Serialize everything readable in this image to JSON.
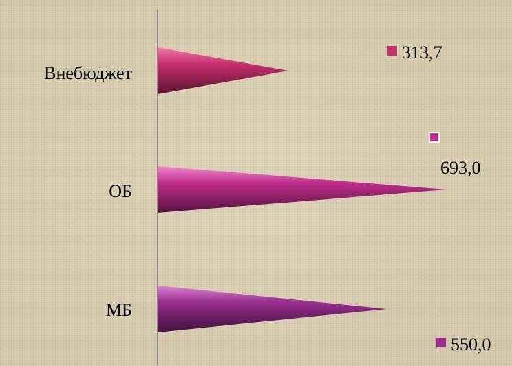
{
  "chart_data": {
    "type": "bar",
    "orientation": "horizontal",
    "shape": "cone",
    "categories": [
      "Внебюджет",
      "ОБ",
      "МБ"
    ],
    "values": [
      313.7,
      693.0,
      550.0
    ],
    "data_labels": [
      "313,7",
      "693,0",
      "550,0"
    ],
    "title": "",
    "xlabel": "",
    "ylabel": "",
    "grid": false,
    "legend": "none",
    "colors": {
      "Внебюджет": "#c8306e",
      "ОБ": "#c02f8c",
      "МБ": "#9a2f8e"
    }
  }
}
